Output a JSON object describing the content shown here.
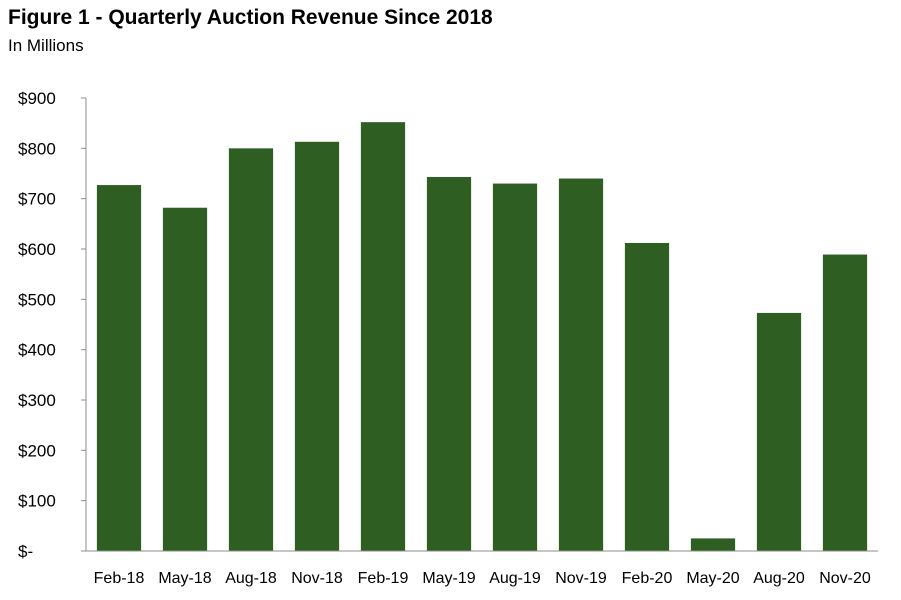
{
  "chart_data": {
    "type": "bar",
    "title": "Figure 1 - Quarterly Auction Revenue Since 2018",
    "subtitle": "In Millions",
    "categories": [
      "Feb-18",
      "May-18",
      "Aug-18",
      "Nov-18",
      "Feb-19",
      "May-19",
      "Aug-19",
      "Nov-19",
      "Feb-20",
      "May-20",
      "Aug-20",
      "Nov-20"
    ],
    "values": [
      727,
      682,
      800,
      813,
      852,
      743,
      730,
      740,
      612,
      25,
      473,
      589
    ],
    "ylim": [
      0,
      900
    ],
    "yticks": [
      0,
      100,
      200,
      300,
      400,
      500,
      600,
      700,
      800,
      900
    ],
    "ytick_labels": [
      "$-",
      "$100",
      "$200",
      "$300",
      "$400",
      "$500",
      "$600",
      "$700",
      "$800",
      "$900"
    ],
    "xlabel": "",
    "ylabel": "",
    "grid": false,
    "bar_color": "#2e5e22"
  }
}
